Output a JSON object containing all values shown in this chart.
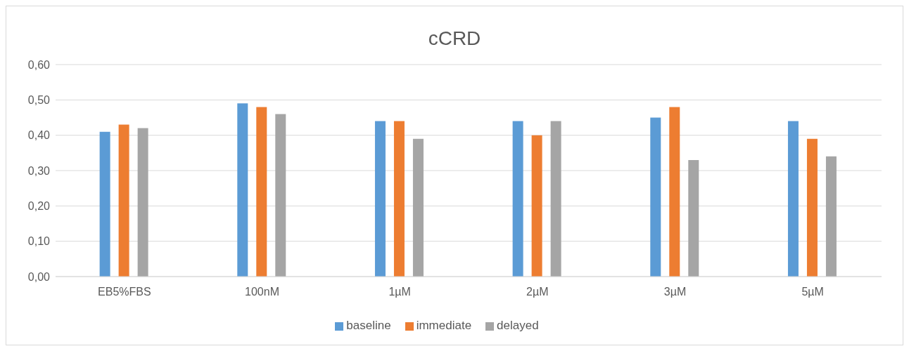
{
  "chart_data": {
    "type": "bar",
    "title": "cCRD",
    "categories": [
      "EB5%FBS",
      "100nM",
      "1µM",
      "2µM",
      "3µM",
      "5µM"
    ],
    "series": [
      {
        "name": "baseline",
        "color": "#5b9bd5",
        "values": [
          0.41,
          0.49,
          0.44,
          0.44,
          0.45,
          0.44
        ]
      },
      {
        "name": "immediate",
        "color": "#ed7d31",
        "values": [
          0.43,
          0.48,
          0.44,
          0.4,
          0.48,
          0.39
        ]
      },
      {
        "name": "delayed",
        "color": "#a5a5a5",
        "values": [
          0.42,
          0.46,
          0.39,
          0.44,
          0.33,
          0.34
        ]
      }
    ],
    "ylim": [
      0,
      0.6
    ],
    "yticks": [
      {
        "value": 0,
        "label": "0,00"
      },
      {
        "value": 0.1,
        "label": "0,10"
      },
      {
        "value": 0.2,
        "label": "0,20"
      },
      {
        "value": 0.3,
        "label": "0,30"
      },
      {
        "value": 0.4,
        "label": "0,40"
      },
      {
        "value": 0.5,
        "label": "0,50"
      },
      {
        "value": 0.6,
        "label": "0,60"
      }
    ],
    "grid": "y",
    "legend": "bottom"
  }
}
